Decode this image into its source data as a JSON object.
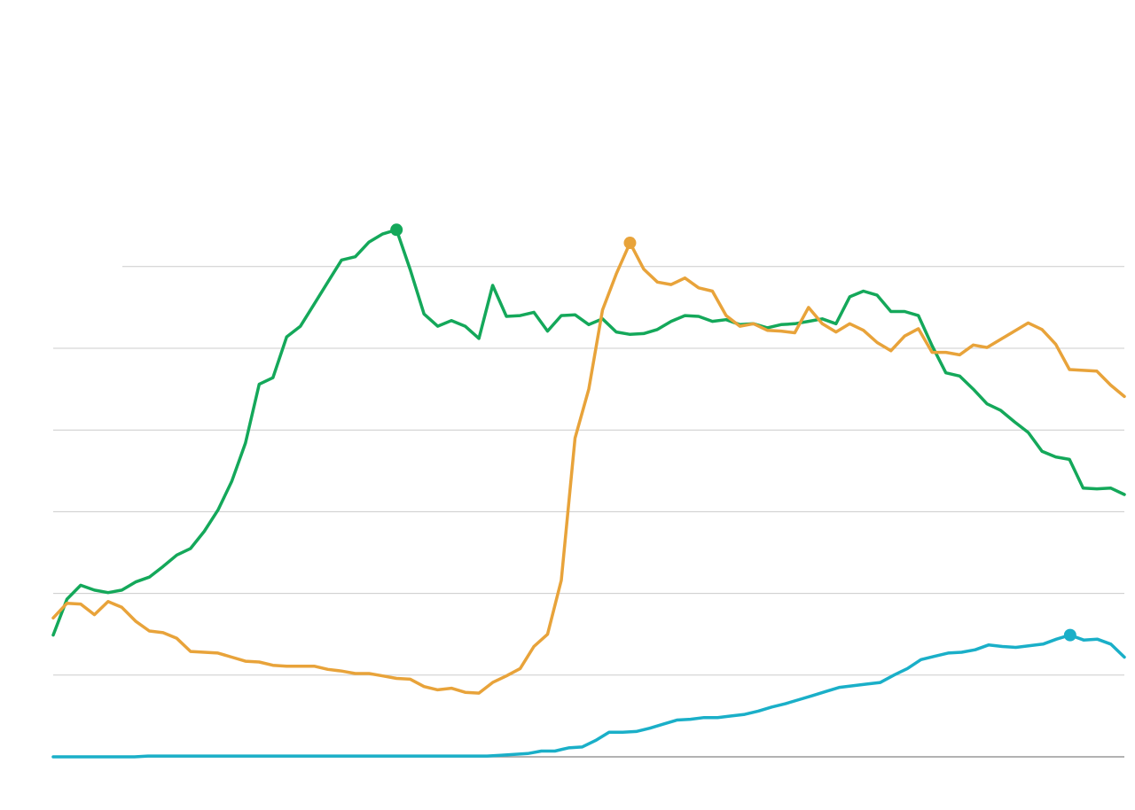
{
  "chart_data": {
    "type": "line",
    "title": "",
    "xlabel": "",
    "ylabel": "",
    "grid": true,
    "legend": "none",
    "ylim": [
      0,
      6
    ],
    "y_gridlines": [
      0,
      1,
      2,
      3,
      4,
      5,
      6
    ],
    "series": [
      {
        "color": "#14a85a",
        "peak_index": 25,
        "values": [
          1.49,
          1.93,
          2.1,
          2.04,
          2.01,
          2.04,
          2.14,
          2.2,
          2.33,
          2.47,
          2.55,
          2.76,
          3.02,
          3.37,
          3.84,
          4.56,
          4.64,
          5.14,
          5.27,
          5.54,
          5.81,
          6.08,
          6.12,
          6.3,
          6.4,
          6.45,
          5.96,
          5.42,
          5.27,
          5.34,
          5.27,
          5.12,
          5.77,
          5.39,
          5.4,
          5.44,
          5.21,
          5.4,
          5.41,
          5.29,
          5.36,
          5.2,
          5.17,
          5.18,
          5.23,
          5.33,
          5.4,
          5.39,
          5.33,
          5.35,
          5.29,
          5.3,
          5.25,
          5.29,
          5.3,
          5.33,
          5.36,
          5.3,
          5.63,
          5.7,
          5.65,
          5.45,
          5.45,
          5.4,
          5.03,
          4.7,
          4.66,
          4.5,
          4.32,
          4.24,
          4.1,
          3.97,
          3.74,
          3.67,
          3.64,
          3.29,
          3.28,
          3.29,
          3.21
        ]
      },
      {
        "color": "#e8a33a",
        "peak_index": 42,
        "values": [
          1.7,
          1.88,
          1.87,
          1.74,
          1.9,
          1.83,
          1.66,
          1.54,
          1.52,
          1.45,
          1.29,
          1.28,
          1.27,
          1.22,
          1.17,
          1.16,
          1.12,
          1.11,
          1.11,
          1.11,
          1.07,
          1.05,
          1.02,
          1.02,
          0.99,
          0.96,
          0.95,
          0.86,
          0.82,
          0.84,
          0.79,
          0.78,
          0.91,
          0.99,
          1.08,
          1.35,
          1.5,
          2.16,
          3.9,
          4.5,
          5.47,
          5.91,
          6.29,
          5.97,
          5.81,
          5.78,
          5.86,
          5.74,
          5.7,
          5.4,
          5.27,
          5.3,
          5.22,
          5.21,
          5.19,
          5.5,
          5.3,
          5.2,
          5.3,
          5.22,
          5.07,
          4.97,
          5.15,
          5.24,
          4.95,
          4.95,
          4.92,
          5.04,
          5.01,
          5.11,
          5.21,
          5.31,
          5.23,
          5.05,
          4.74,
          4.73,
          4.72,
          4.55,
          4.41
        ]
      },
      {
        "color": "#1aafc8",
        "peak_index": 75,
        "values": [
          0,
          0,
          0,
          0,
          0,
          0,
          0,
          0.01,
          0.01,
          0.01,
          0.01,
          0.01,
          0.01,
          0.01,
          0.01,
          0.01,
          0.01,
          0.01,
          0.01,
          0.01,
          0.01,
          0.01,
          0.01,
          0.01,
          0.01,
          0.01,
          0.01,
          0.01,
          0.01,
          0.01,
          0.01,
          0.01,
          0.01,
          0.02,
          0.03,
          0.04,
          0.07,
          0.07,
          0.11,
          0.12,
          0.2,
          0.3,
          0.3,
          0.31,
          0.35,
          0.4,
          0.45,
          0.46,
          0.48,
          0.48,
          0.5,
          0.52,
          0.56,
          0.61,
          0.65,
          0.7,
          0.75,
          0.8,
          0.85,
          0.87,
          0.89,
          0.91,
          1.0,
          1.08,
          1.19,
          1.23,
          1.27,
          1.28,
          1.31,
          1.37,
          1.35,
          1.34,
          1.36,
          1.38,
          1.44,
          1.49,
          1.43,
          1.44,
          1.38,
          1.22
        ]
      }
    ]
  }
}
